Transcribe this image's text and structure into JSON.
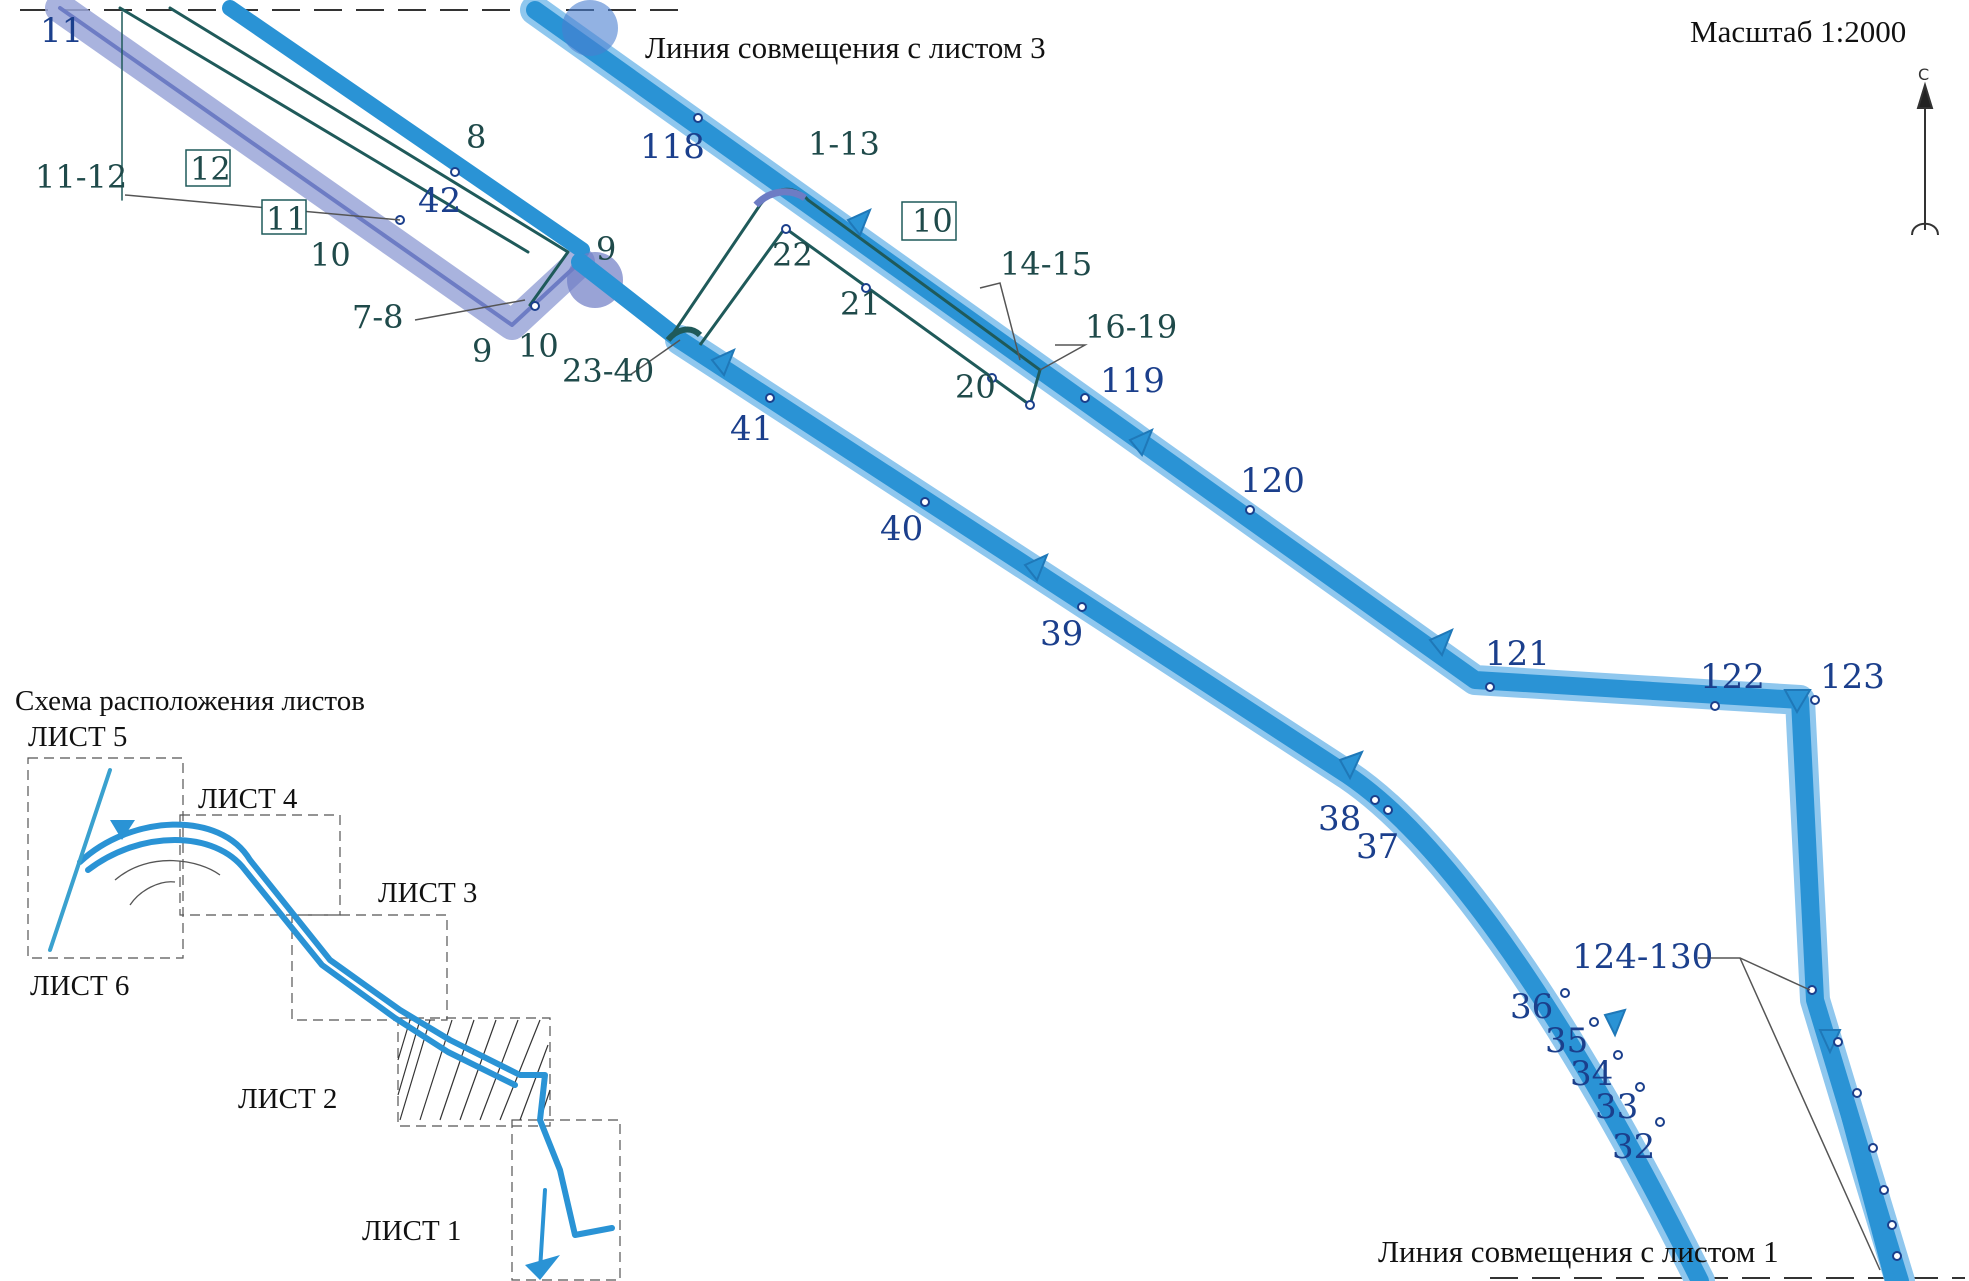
{
  "header": {
    "scale": "Масштаб 1:2000",
    "match_top": "Линия совмещения с листом 3",
    "match_bottom": "Линия совмещения с листом 1",
    "north": "С"
  },
  "inset": {
    "title": "Схема расположения листов",
    "sheets": [
      "ЛИСТ 5",
      "ЛИСТ 4",
      "ЛИСТ 3",
      "ЛИСТ 6",
      "ЛИСТ 2",
      "ЛИСТ 1"
    ]
  },
  "labels": {
    "n11": "11",
    "n118": "118",
    "n1_13": "1-13",
    "n8": "8",
    "n12box": "12",
    "n11_12": "11-12",
    "n42": "42",
    "n11box": "11",
    "n10a": "10",
    "n9a": "9",
    "n10box": "10",
    "n22": "22",
    "n14_15": "14-15",
    "n21": "21",
    "n7_8": "7-8",
    "n9b": "9",
    "n10b": "10",
    "n23_40": "23-40",
    "n16_19": "16-19",
    "n20": "20",
    "n119": "119",
    "n41": "41",
    "n120": "120",
    "n40": "40",
    "n39": "39",
    "n121": "121",
    "n122": "122",
    "n123": "123",
    "n38": "38",
    "n37": "37",
    "n124_130": "124-130",
    "n36": "36",
    "n35": "35",
    "n34": "34",
    "n33": "33",
    "n32": "32"
  },
  "colors": {
    "pipeline": "#2a93d5",
    "pipeline_glow": "#8fc7ee",
    "network": "#1f5a5a",
    "label_blue": "#1b3f8c"
  }
}
